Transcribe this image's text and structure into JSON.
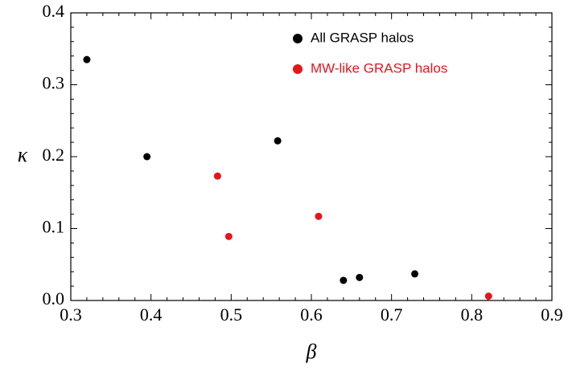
{
  "chart_data": {
    "type": "scatter",
    "x_label": "β",
    "y_label": "κ",
    "xlim": [
      0.3,
      0.9
    ],
    "xticks": [
      0.3,
      0.4,
      0.5,
      0.6,
      0.7,
      0.8,
      0.9
    ],
    "ylim": [
      0,
      0.4
    ],
    "yticks": [
      {
        "value": 0,
        "label": "0.0"
      },
      0.1,
      0.2,
      0.3,
      0.4
    ],
    "legend": "top-right",
    "series": [
      {
        "name": "All GRASP halos",
        "color": "#000000",
        "x": [
          0.32,
          0.395,
          0.558,
          0.64,
          0.66,
          0.729
        ],
        "values": [
          0.335,
          0.2,
          0.222,
          0.028,
          0.032,
          0.037
        ]
      },
      {
        "name": "MW-like GRASP halos",
        "color": "#e8141a",
        "x": [
          0.483,
          0.497,
          0.609,
          0.821
        ],
        "values": [
          0.173,
          0.089,
          0.117,
          0.006
        ]
      }
    ]
  }
}
